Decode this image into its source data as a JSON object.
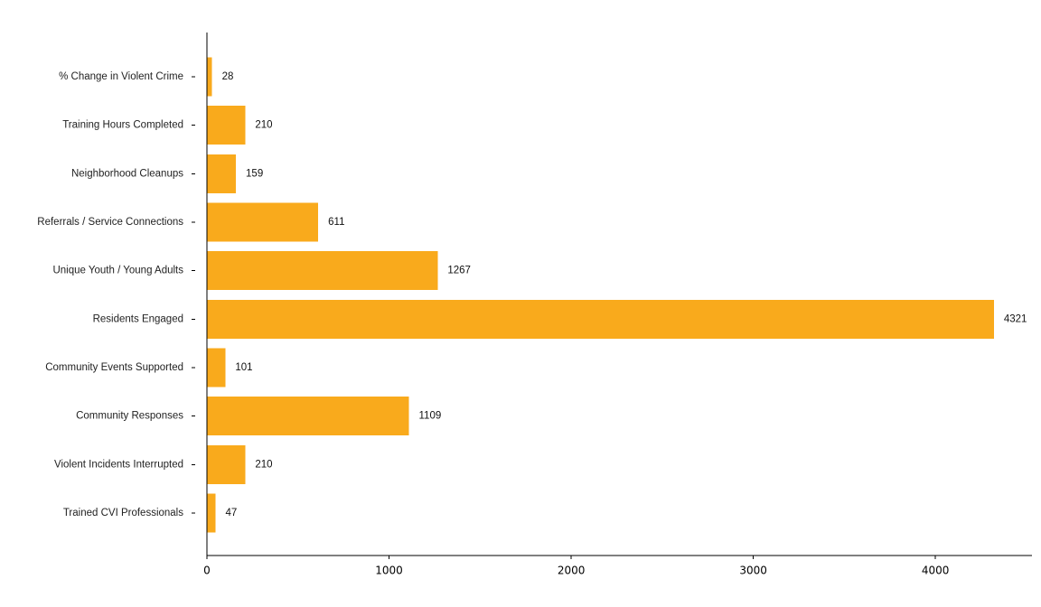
{
  "chart_data": {
    "type": "bar",
    "orientation": "horizontal",
    "categories": [
      "% Change in Violent Crime",
      "Training Hours Completed",
      "Neighborhood Cleanups",
      "Referrals / Service Connections",
      "Unique Youth / Young Adults",
      "Residents Engaged",
      "Community Events Supported",
      "Community Responses",
      "Violent Incidents Interrupted",
      "Trained CVI Professionals"
    ],
    "values": [
      28,
      210,
      159,
      611,
      1267,
      4321,
      101,
      1109,
      210,
      47
    ],
    "value_labels": [
      "28",
      "210",
      "159",
      "611",
      "1267",
      "4321",
      "101",
      "1109",
      "210",
      "47"
    ],
    "xlim": [
      0,
      4530
    ],
    "xticks": [
      0,
      1000,
      2000,
      3000,
      4000
    ],
    "xtick_labels": [
      "0",
      "1000",
      "2000",
      "3000",
      "4000"
    ],
    "bar_color": "#F9AA1C",
    "grid": false,
    "legend": "none",
    "spines": [
      "left",
      "bottom"
    ]
  }
}
